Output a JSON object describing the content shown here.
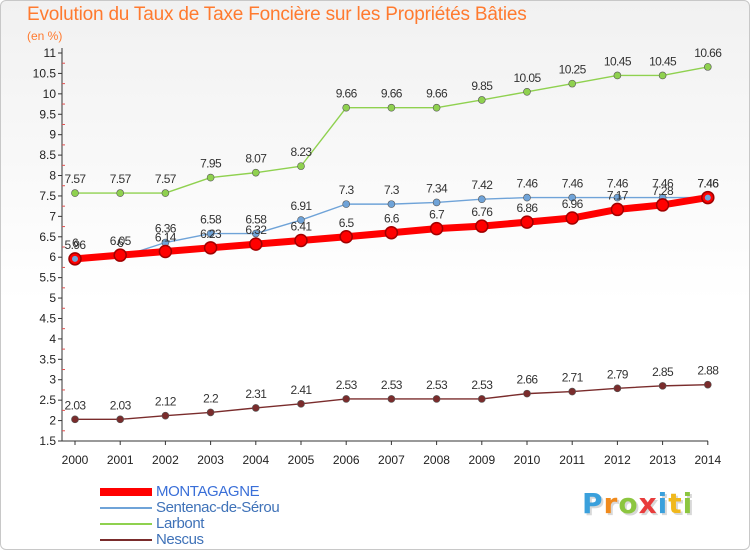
{
  "header": {
    "title": "Evolution du Taux de Taxe Foncière sur les Propriétés Bâties",
    "unit": "(en %)"
  },
  "logo": {
    "text": "Proxiti"
  },
  "chart_data": {
    "type": "line",
    "x": [
      "2000",
      "2001",
      "2002",
      "2003",
      "2004",
      "2005",
      "2006",
      "2007",
      "2008",
      "2009",
      "2010",
      "2011",
      "2012",
      "2013",
      "2014"
    ],
    "ylim": [
      1.5,
      11
    ],
    "yticks": [
      1.5,
      2,
      2.5,
      3,
      3.5,
      4,
      4.5,
      5,
      5.5,
      6,
      6.5,
      7,
      7.5,
      8,
      8.5,
      9,
      9.5,
      10,
      10.5,
      11
    ],
    "ytick_labels": [
      "1.5",
      "2",
      "2.5",
      "3",
      "3.5",
      "4",
      "4.5",
      "5",
      "5.5",
      "6",
      "6.5",
      "7",
      "7.5",
      "8",
      "8.5",
      "9",
      "9.5",
      "10",
      "10.5",
      "11"
    ],
    "grid": false,
    "legend_position": "bottom-left",
    "series": [
      {
        "name": "MONTAGAGNE",
        "color": "#ff0000",
        "values": [
          5.96,
          6.05,
          6.14,
          6.23,
          6.32,
          6.41,
          6.5,
          6.6,
          6.7,
          6.76,
          6.86,
          6.96,
          7.17,
          7.28,
          7.46
        ],
        "labels": [
          "5.96",
          "6.05",
          "6.14",
          "6.23",
          "6.32",
          "6.41",
          "6.5",
          "6.6",
          "6.7",
          "6.76",
          "6.86",
          "6.96",
          "7.17",
          "7.28",
          "7.46"
        ]
      },
      {
        "name": "Sentenac-de-Sérou",
        "color": "#6fa3d8",
        "values": [
          6,
          6,
          6.36,
          6.58,
          6.58,
          6.91,
          7.3,
          7.3,
          7.34,
          7.42,
          7.46,
          7.46,
          7.46,
          7.46,
          7.46
        ],
        "labels": [
          "6",
          "6",
          "6.36",
          "6.58",
          "6.58",
          "6.91",
          "7.3",
          "7.3",
          "7.34",
          "7.42",
          "7.46",
          "7.46",
          "7.46",
          "7.46",
          "7.46"
        ]
      },
      {
        "name": "Larbont",
        "color": "#8fd14f",
        "values": [
          7.57,
          7.57,
          7.57,
          7.95,
          8.07,
          8.23,
          9.66,
          9.66,
          9.66,
          9.85,
          10.05,
          10.25,
          10.45,
          10.45,
          10.66
        ],
        "labels": [
          "7.57",
          "7.57",
          "7.57",
          "7.95",
          "8.07",
          "8.23",
          "9.66",
          "9.66",
          "9.66",
          "9.85",
          "10.05",
          "10.25",
          "10.45",
          "10.45",
          "10.66"
        ]
      },
      {
        "name": "Nescus",
        "color": "#7a2c2c",
        "values": [
          2.03,
          2.03,
          2.12,
          2.2,
          2.31,
          2.41,
          2.53,
          2.53,
          2.53,
          2.53,
          2.66,
          2.71,
          2.79,
          2.85,
          2.88
        ],
        "labels": [
          "2.03",
          "2.03",
          "2.12",
          "2.2",
          "2.31",
          "2.41",
          "2.53",
          "2.53",
          "2.53",
          "2.53",
          "2.66",
          "2.71",
          "2.79",
          "2.85",
          "2.88"
        ]
      }
    ]
  }
}
